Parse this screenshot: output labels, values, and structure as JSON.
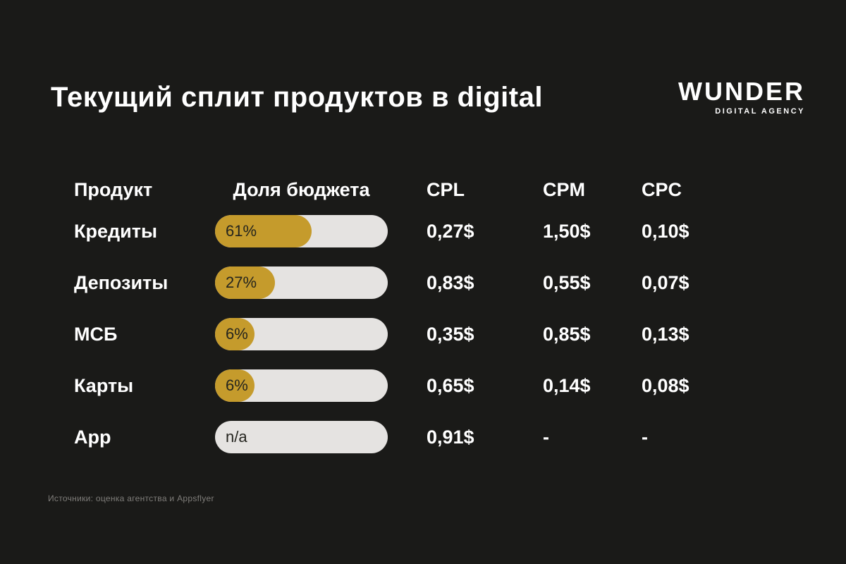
{
  "page": {
    "title": "Текущий сплит продуктов в digital",
    "logo": {
      "name": "WUNDER",
      "tagline": "DIGITAL AGENCY"
    },
    "footnote": "Источники: оценка агентства и Appsflyer"
  },
  "table": {
    "headers": {
      "product": "Продукт",
      "budget": "Доля бюджета",
      "cpl": "CPL",
      "cpm": "CPM",
      "cpc": "CPC"
    },
    "rows": [
      {
        "product": "Кредиты",
        "share_label": "61%",
        "share_pct": 61,
        "cpl": "0,27$",
        "cpm": "1,50$",
        "cpc": "0,10$"
      },
      {
        "product": "Депозиты",
        "share_label": "27%",
        "share_pct": 27,
        "cpl": "0,83$",
        "cpm": "0,55$",
        "cpc": "0,07$"
      },
      {
        "product": "МСБ",
        "share_label": "6%",
        "share_pct": 6,
        "cpl": "0,35$",
        "cpm": "0,85$",
        "cpc": "0,13$"
      },
      {
        "product": "Карты",
        "share_label": "6%",
        "share_pct": 6,
        "cpl": "0,65$",
        "cpm": "0,14$",
        "cpc": "0,08$"
      },
      {
        "product": "App",
        "share_label": "n/a",
        "share_pct": null,
        "cpl": "0,91$",
        "cpm": "-",
        "cpc": "-"
      }
    ]
  },
  "colors": {
    "background": "#1a1a18",
    "accent_gold": "#c59b2c",
    "pill_background": "#e5e3e1",
    "text_light": "#ffffff",
    "text_dark": "#24241e",
    "footnote_gray": "#7f7d7a"
  },
  "chart_data": {
    "type": "bar",
    "title": "Текущий сплит продуктов в digital",
    "categories": [
      "Кредиты",
      "Депозиты",
      "МСБ",
      "Карты",
      "App"
    ],
    "series": [
      {
        "name": "Доля бюджета (%)",
        "values": [
          61,
          27,
          6,
          6,
          null
        ]
      },
      {
        "name": "CPL ($)",
        "values": [
          0.27,
          0.83,
          0.35,
          0.65,
          0.91
        ]
      },
      {
        "name": "CPM ($)",
        "values": [
          1.5,
          0.55,
          0.85,
          0.14,
          null
        ]
      },
      {
        "name": "CPC ($)",
        "values": [
          0.1,
          0.07,
          0.13,
          0.08,
          null
        ]
      }
    ],
    "xlabel": "",
    "ylabel": "Доля бюджета",
    "xlim": [
      0,
      100
    ],
    "grid": false,
    "legend_position": "none",
    "annotations": [
      "61%",
      "27%",
      "6%",
      "6%",
      "n/a"
    ]
  }
}
